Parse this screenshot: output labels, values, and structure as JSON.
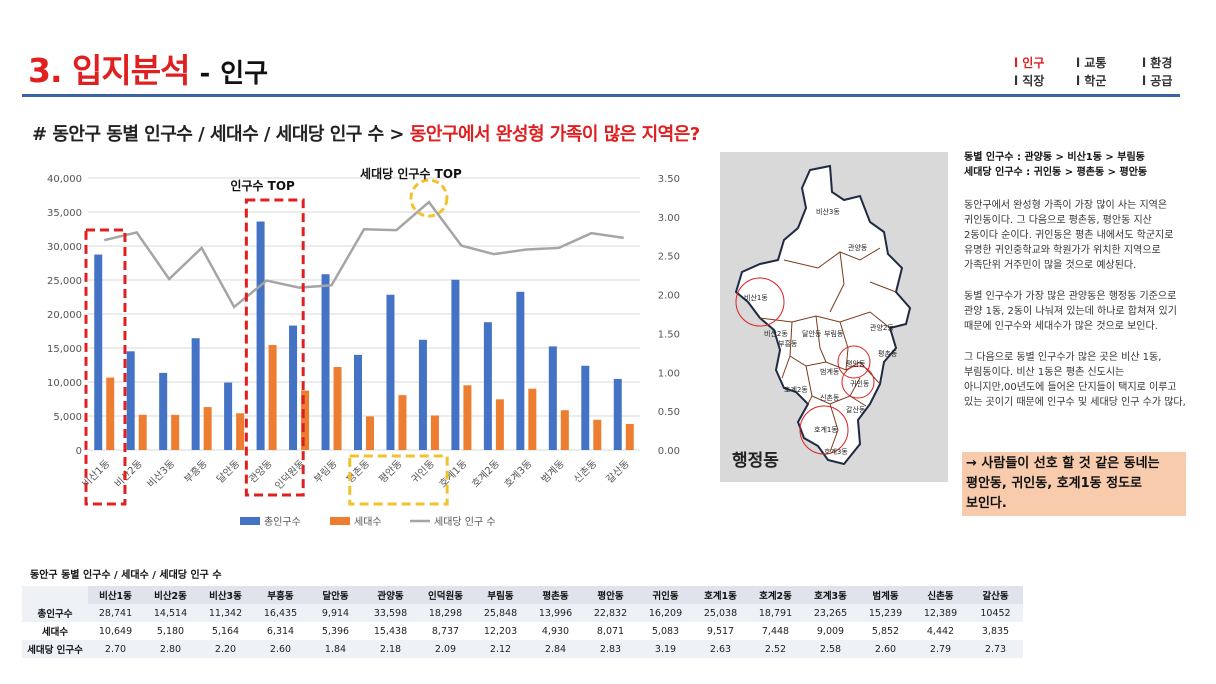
{
  "header": {
    "number_title": "3. 입지분석",
    "dash": "-",
    "subtitle": "인구"
  },
  "nav": {
    "items": [
      {
        "label": "l 인구",
        "active": true
      },
      {
        "label": "l 교통",
        "active": false
      },
      {
        "label": "l 환경",
        "active": false
      },
      {
        "label": "l 직장",
        "active": false
      },
      {
        "label": "l 학군",
        "active": false
      },
      {
        "label": "l 공급",
        "active": false
      }
    ]
  },
  "section": {
    "prefix": "# 동안구 동별 인구수 / 세대수 / 세대당 인구 수 > ",
    "question": "동안구에서 완성형 가족이 많은 지역은?"
  },
  "chart_data": {
    "type": "bar",
    "categories": [
      "비산1동",
      "비산2동",
      "비산3동",
      "부흥동",
      "달안동",
      "관양동",
      "인덕원동",
      "부림동",
      "평촌동",
      "평안동",
      "귀인동",
      "호계1동",
      "호계2동",
      "호계3동",
      "범계동",
      "신촌동",
      "갈산동"
    ],
    "series": [
      {
        "name": "총인구수",
        "axis": "left",
        "type": "bar",
        "color": "#4472c4",
        "values": [
          28741,
          14514,
          11342,
          16435,
          9914,
          33598,
          18298,
          25848,
          13996,
          22832,
          16209,
          25038,
          18791,
          23265,
          15239,
          12389,
          10452
        ]
      },
      {
        "name": "세대수",
        "axis": "left",
        "type": "bar",
        "color": "#ed7d31",
        "values": [
          10649,
          5180,
          5164,
          6314,
          5396,
          15438,
          8737,
          12203,
          4930,
          8071,
          5083,
          9517,
          7448,
          9009,
          5852,
          4442,
          3835
        ]
      },
      {
        "name": "세대당 인구 수",
        "axis": "right",
        "type": "line",
        "color": "#a5a5a5",
        "values": [
          2.7,
          2.8,
          2.2,
          2.6,
          1.84,
          2.18,
          2.09,
          2.12,
          2.84,
          2.83,
          3.19,
          2.63,
          2.52,
          2.58,
          2.6,
          2.79,
          2.73
        ]
      }
    ],
    "y_left": {
      "min": 0,
      "max": 40000,
      "step": 5000,
      "ticks": [
        "0",
        "5,000",
        "10,000",
        "15,000",
        "20,000",
        "25,000",
        "30,000",
        "35,000",
        "40,000"
      ]
    },
    "y_right": {
      "min": 0,
      "max": 3.5,
      "step": 0.5,
      "ticks": [
        "0.00",
        "0.50",
        "1.00",
        "1.50",
        "2.00",
        "2.50",
        "3.00",
        "3.50"
      ]
    },
    "grid": true,
    "legend_position": "bottom",
    "annotations": [
      {
        "text": "인구수 TOP"
      },
      {
        "text": "세대당 인구수 TOP"
      }
    ]
  },
  "map": {
    "label": "행정동",
    "regions": [
      "비산3동",
      "관양동",
      "비산1동",
      "관양2동",
      "비산2동",
      "달안동",
      "부림동",
      "부흥동",
      "평촌동",
      "범계동",
      "평안동",
      "호계2동",
      "귀인동",
      "신촌동",
      "호계1동",
      "갈산동",
      "호계3동"
    ]
  },
  "side": {
    "rank1": "동별 인구수 : 관양동 > 비산1동 > 부림동",
    "rank2": "세대당 인구수 : 귀인동 > 평촌동 > 평안동",
    "para1": "동안구에서 완성형 가족이 가장 많이 사는 지역은 귀인동이다. 그 다음으로 평촌동, 평안동 지산 2동이다 순이다. 귀인동은 평촌 내에서도 학군지로 유명한 귀인중학교와 학원가가 위치한 지역으로 가족단위 거주민이 많을 것으로 예상된다.",
    "para2": "동별 인구수가 가장 많은 관양동은 행정동 기준으로 관양 1동, 2동이 나눠져 있는데 하나로 합쳐져 있기 때문에 인구수와 세대수가 많은 것으로 보인다.",
    "para3": "그 다음으로 동별 인구수가 많은 곳은 비산 1동, 부림동이다. 비산 1동은 평촌 신도시는 아니지만,00년도에 들어온 단지들이 택지로 이루고 있는 곳이기 때문에 인구수 및 세대당 인구 수가 많다,",
    "conclusion": "→ 사람들이 선호 할 것 같은 동네는 평안동, 귀인동, 호계1동 정도로 보인다."
  },
  "table": {
    "title": "동안구 동별 인구수 / 세대수 / 세대당 인구 수",
    "columns": [
      "비산1동",
      "비산2동",
      "비산3동",
      "부흥동",
      "달안동",
      "관양동",
      "인덕원동",
      "부림동",
      "평촌동",
      "평안동",
      "귀인동",
      "호계1동",
      "호계2동",
      "호계3동",
      "범계동",
      "신촌동",
      "갈산동"
    ],
    "rows": [
      {
        "label": "총인구수",
        "cells": [
          "28,741",
          "14,514",
          "11,342",
          "16,435",
          "9,914",
          "33,598",
          "18,298",
          "25,848",
          "13,996",
          "22,832",
          "16,209",
          "25,038",
          "18,791",
          "23,265",
          "15,239",
          "12,389",
          "10452"
        ]
      },
      {
        "label": "세대수",
        "cells": [
          "10,649",
          "5,180",
          "5,164",
          "6,314",
          "5,396",
          "15,438",
          "8,737",
          "12,203",
          "4,930",
          "8,071",
          "5,083",
          "9,517",
          "7,448",
          "9,009",
          "5,852",
          "4,442",
          "3,835"
        ]
      },
      {
        "label": "세대당 인구수",
        "cells": [
          "2.70",
          "2.80",
          "2.20",
          "2.60",
          "1.84",
          "2.18",
          "2.09",
          "2.12",
          "2.84",
          "2.83",
          "3.19",
          "2.63",
          "2.52",
          "2.58",
          "2.60",
          "2.79",
          "2.73"
        ]
      }
    ]
  }
}
